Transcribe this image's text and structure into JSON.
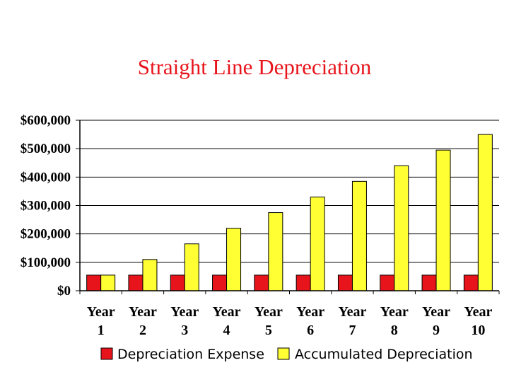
{
  "chart_data": {
    "type": "bar",
    "title": "Straight Line Depreciation",
    "xlabel": "",
    "ylabel": "",
    "categories": [
      [
        "Year",
        "1"
      ],
      [
        "Year",
        "2"
      ],
      [
        "Year",
        "3"
      ],
      [
        "Year",
        "4"
      ],
      [
        "Year",
        "5"
      ],
      [
        "Year",
        "6"
      ],
      [
        "Year",
        "7"
      ],
      [
        "Year",
        "8"
      ],
      [
        "Year",
        "9"
      ],
      [
        "Year",
        "10"
      ]
    ],
    "series": [
      {
        "name": "Depreciation Expense",
        "color": "#e8141c",
        "values": [
          55000,
          55000,
          55000,
          55000,
          55000,
          55000,
          55000,
          55000,
          55000,
          55000
        ]
      },
      {
        "name": "Accumulated Depreciation",
        "color": "#ffff33",
        "values": [
          55000,
          110000,
          165000,
          220000,
          275000,
          330000,
          385000,
          440000,
          495000,
          550000
        ]
      }
    ],
    "ylim": [
      0,
      600000
    ],
    "yticks": [
      0,
      100000,
      200000,
      300000,
      400000,
      500000,
      600000
    ],
    "ytick_labels": [
      "$0",
      "$100,000",
      "$200,000",
      "$300,000",
      "$400,000",
      "$500,000",
      "$600,000"
    ],
    "grid": true,
    "legend_position": "bottom"
  }
}
